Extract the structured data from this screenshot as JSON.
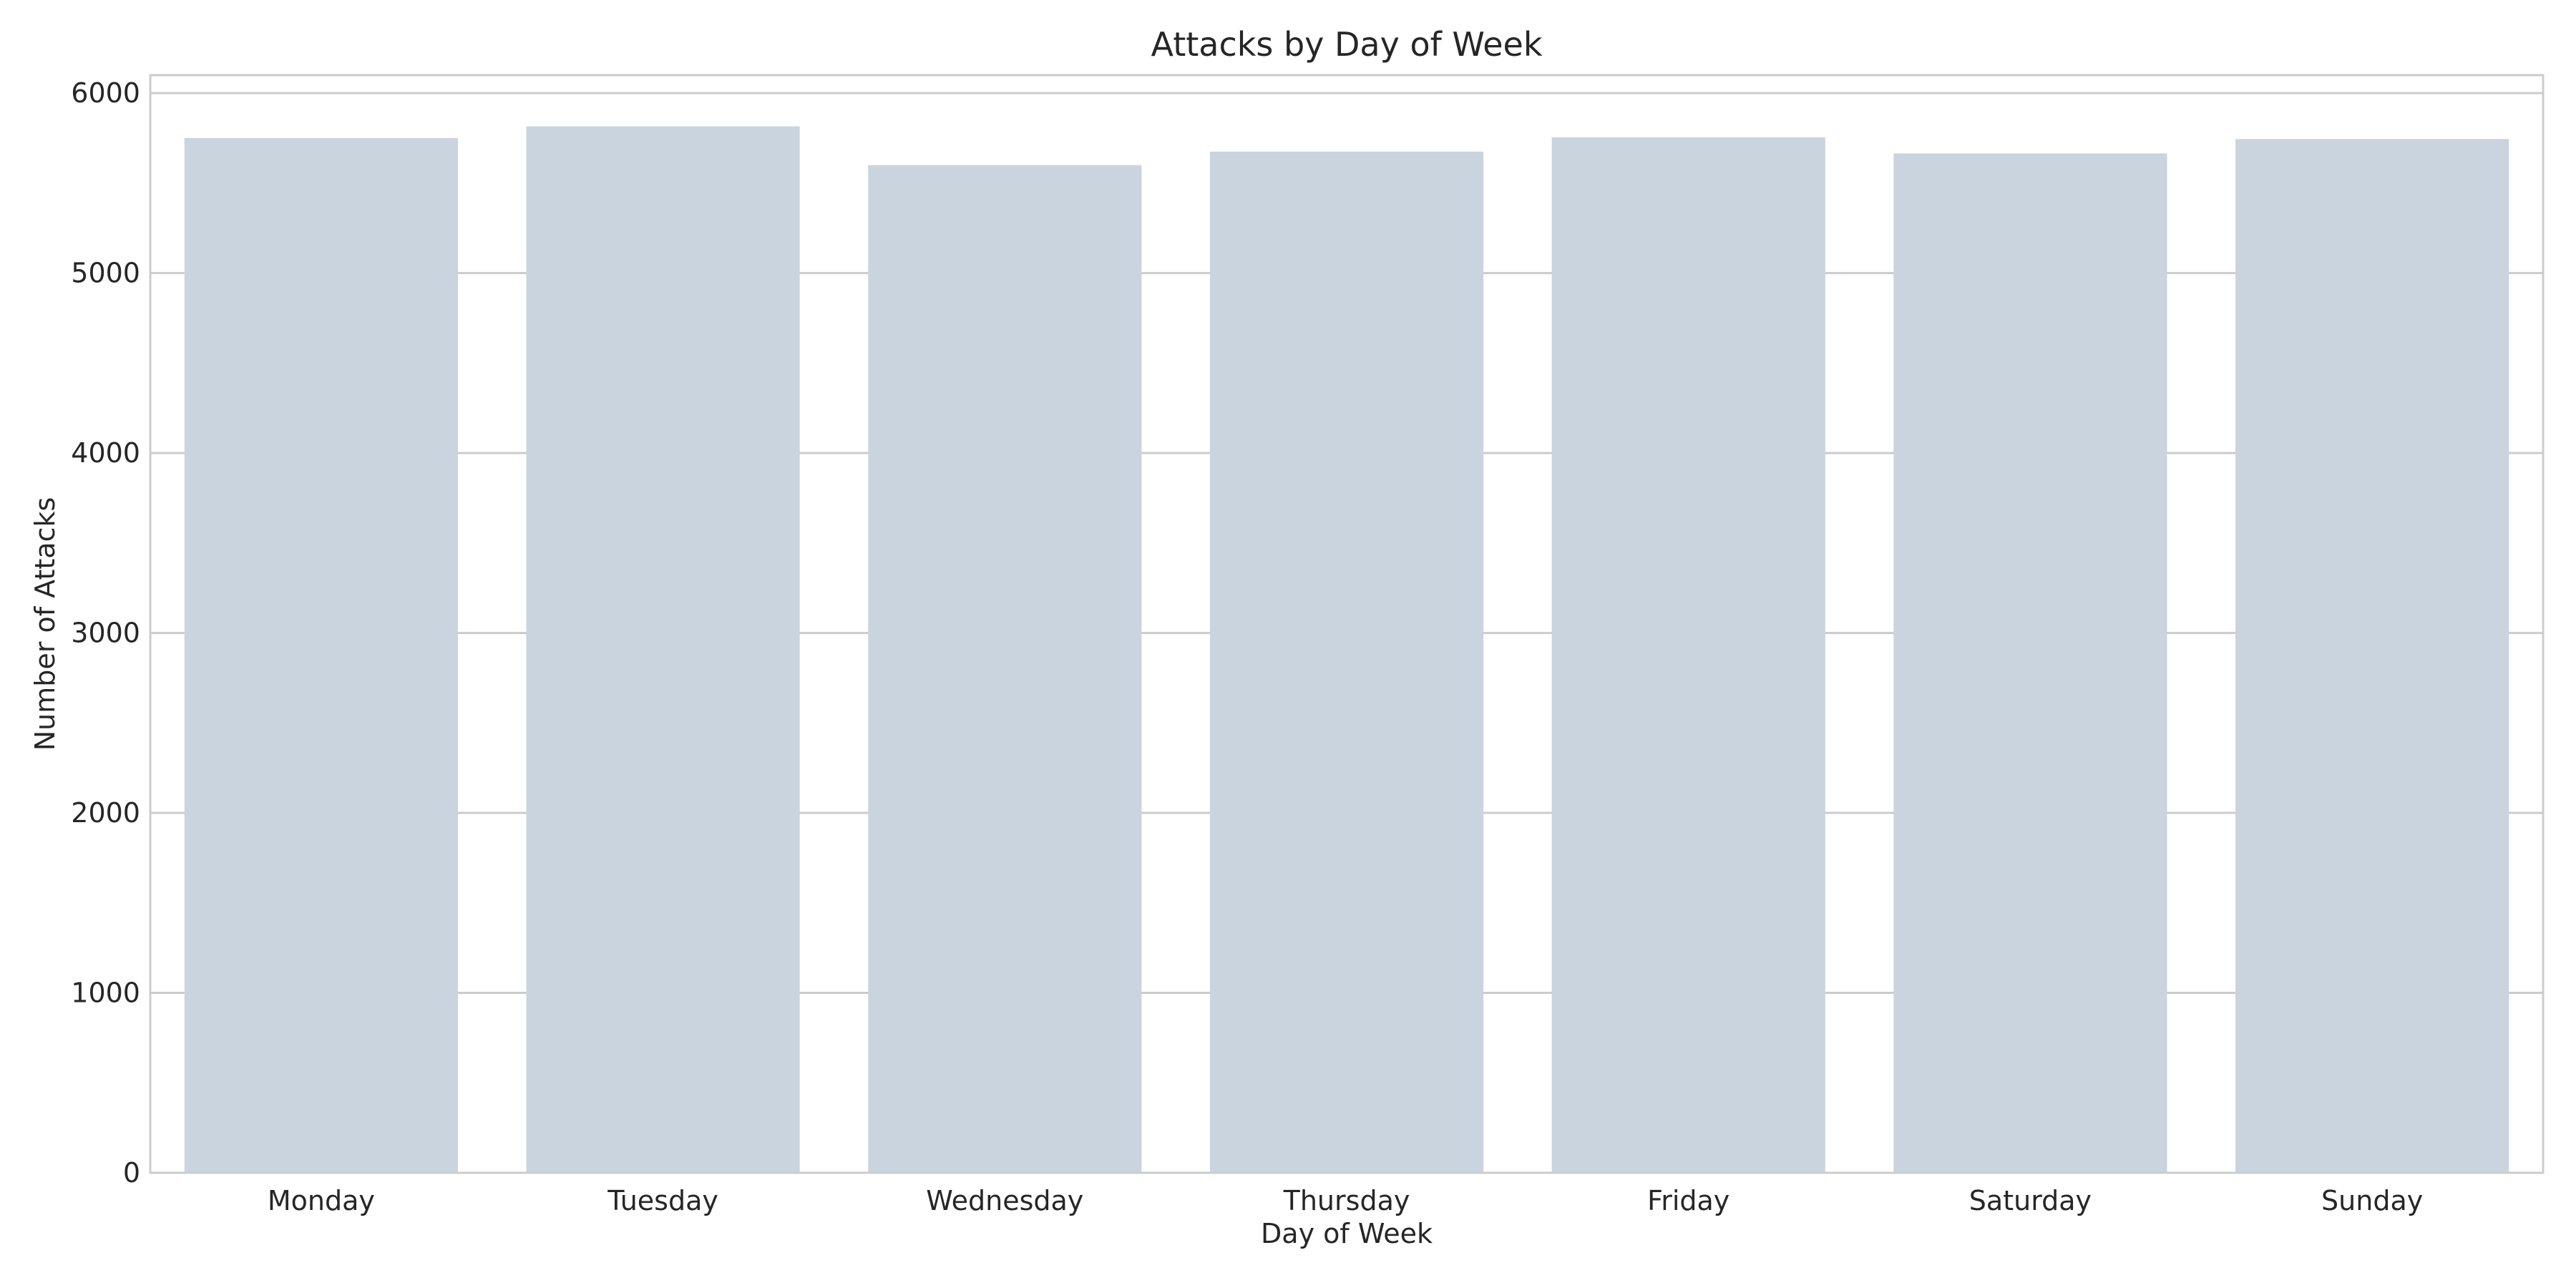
{
  "chart_data": {
    "type": "bar",
    "title": "Attacks by Day of Week",
    "xlabel": "Day of Week",
    "ylabel": "Number of Attacks",
    "categories": [
      "Monday",
      "Tuesday",
      "Wednesday",
      "Thursday",
      "Friday",
      "Saturday",
      "Sunday"
    ],
    "values": [
      5750,
      5815,
      5600,
      5675,
      5755,
      5665,
      5745
    ],
    "ylim": [
      0,
      6100
    ],
    "yticks": [
      0,
      1000,
      2000,
      3000,
      4000,
      5000,
      6000
    ],
    "grid": true,
    "legend": "none",
    "colors": {
      "bar": "#c9d4df",
      "grid": "#cccccc",
      "text": "#262626",
      "background": "#ffffff"
    }
  }
}
